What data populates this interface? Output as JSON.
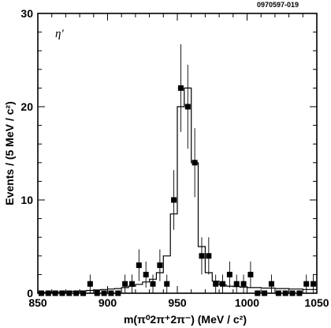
{
  "figure_id": "0970597-019",
  "chart_data": {
    "type": "histogram_with_points",
    "annotation": "η′",
    "xlabel": "m(π⁰2π⁺2π⁻) (MeV / c²)",
    "ylabel": "Events / (5 MeV / c²)",
    "xlim": [
      850,
      1050
    ],
    "ylim": [
      0,
      30
    ],
    "x_ticks": [
      850,
      900,
      950,
      1000,
      1050
    ],
    "x_tick_labels": [
      "850",
      "900",
      "950",
      "1000",
      "1050"
    ],
    "y_ticks": [
      0,
      10,
      20,
      30
    ],
    "y_tick_labels": [
      "0",
      "10",
      "20",
      "30"
    ],
    "grid": false,
    "series": [
      {
        "kind": "points",
        "x": [
          852.5,
          857.5,
          862.5,
          867.5,
          872.5,
          877.5,
          882.5,
          887.5,
          892.5,
          897.5,
          902.5,
          907.5,
          912.5,
          917.5,
          922.5,
          927.5,
          932.5,
          937.5,
          942.5,
          947.5,
          952.5,
          957.5,
          962.5,
          967.5,
          972.5,
          977.5,
          982.5,
          987.5,
          992.5,
          997.5,
          1002.5,
          1007.5,
          1012.5,
          1017.5,
          1022.5,
          1027.5,
          1032.5,
          1037.5,
          1042.5,
          1047.5
        ],
        "y": [
          0,
          0,
          0,
          0,
          0,
          0,
          0,
          1,
          0,
          0,
          0,
          0,
          1,
          1,
          3,
          2,
          1,
          3,
          1,
          10,
          22,
          20,
          14,
          4,
          4,
          1,
          1,
          2,
          1,
          1,
          2,
          0,
          0,
          1,
          0,
          0,
          0,
          0,
          1,
          1
        ],
        "err": [
          0,
          0,
          0,
          0,
          0,
          0,
          0,
          1,
          0,
          0,
          0,
          0,
          1,
          1,
          1.7,
          1.4,
          1,
          1.7,
          1,
          3.2,
          4.7,
          4.5,
          3.7,
          2,
          2,
          1,
          1,
          1.4,
          1,
          1,
          1.4,
          0,
          0,
          1,
          0,
          0,
          0,
          0,
          1,
          1
        ]
      },
      {
        "kind": "step_fit",
        "x_edges": [
          850,
          855,
          860,
          865,
          870,
          875,
          880,
          885,
          890,
          895,
          900,
          905,
          910,
          915,
          920,
          925,
          930,
          935,
          940,
          945,
          950,
          955,
          960,
          965,
          970,
          975,
          980,
          985,
          990,
          995,
          1000,
          1005,
          1010,
          1015,
          1020,
          1025,
          1030,
          1035,
          1040,
          1045,
          1050
        ],
        "y": [
          0.1,
          0.1,
          0.15,
          0.15,
          0.2,
          0.2,
          0.25,
          0.3,
          0.35,
          0.4,
          0.45,
          0.5,
          0.6,
          0.75,
          0.95,
          1.2,
          1.5,
          2.2,
          4.0,
          8.5,
          20,
          22,
          14,
          5,
          2.2,
          1.3,
          0.9,
          0.75,
          0.7,
          0.65,
          0.6,
          0.6,
          0.55,
          0.55,
          0.5,
          0.5,
          0.45,
          0.45,
          0.4,
          0.4
        ]
      }
    ]
  }
}
